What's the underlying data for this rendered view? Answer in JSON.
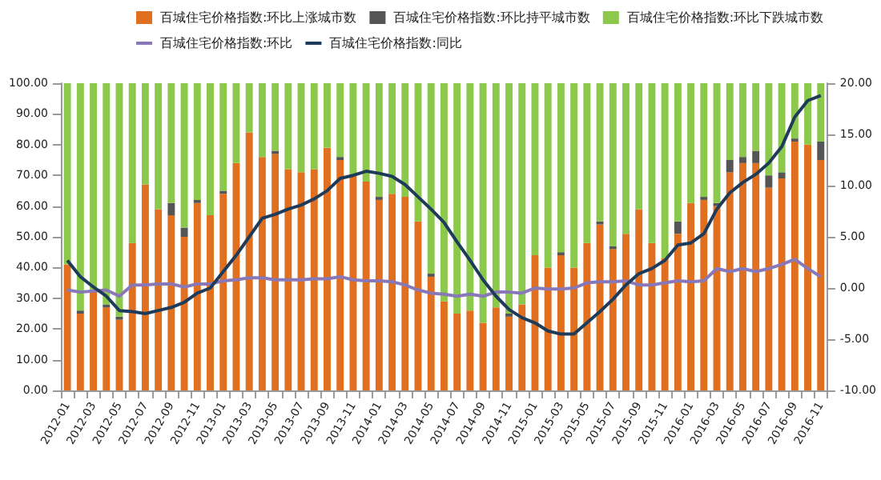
{
  "chart_data": {
    "type": "bar",
    "stacked": true,
    "legend": "top",
    "marker": "none",
    "categories": [
      "2012-01",
      null,
      "2012-03",
      null,
      "2012-05",
      null,
      "2012-07",
      null,
      "2012-09",
      null,
      "2012-11",
      null,
      "2013-01",
      null,
      "2013-03",
      null,
      "2013-05",
      null,
      "2013-07",
      null,
      "2013-09",
      null,
      "2013-11",
      null,
      "2014-01",
      null,
      "2014-03",
      null,
      "2014-05",
      null,
      "2014-07",
      null,
      "2014-09",
      null,
      "2014-11",
      null,
      "2015-01",
      null,
      "2015-03",
      null,
      "2015-05",
      null,
      "2015-07",
      null,
      "2015-09",
      null,
      "2015-11",
      null,
      "2016-01",
      null,
      "2016-03",
      null,
      "2016-05",
      null,
      "2016-07",
      null,
      "2016-09",
      null,
      "2016-11"
    ],
    "ylim": [
      0,
      100
    ],
    "yticks": [
      {
        "value": 0,
        "label": "0.00"
      },
      {
        "value": 10,
        "label": "10.00"
      },
      {
        "value": 20,
        "label": "20.00"
      },
      {
        "value": 30,
        "label": "30.00"
      },
      {
        "value": 40,
        "label": "40.00"
      },
      {
        "value": 50,
        "label": "50.00"
      },
      {
        "value": 60,
        "label": "60.00"
      },
      {
        "value": 70,
        "label": "70.00"
      },
      {
        "value": 80,
        "label": "80.00"
      },
      {
        "value": 90,
        "label": "90.00"
      },
      {
        "value": 100,
        "label": "100.00"
      }
    ],
    "y2lim": [
      -10,
      20
    ],
    "y2ticks": [
      {
        "value": -10,
        "label": "-10.00"
      },
      {
        "value": -5,
        "label": "-5.00"
      },
      {
        "value": 0,
        "label": "0.00"
      },
      {
        "value": 5,
        "label": "5.00"
      },
      {
        "value": 10,
        "label": "10.00"
      },
      {
        "value": 15,
        "label": "15.00"
      },
      {
        "value": 20,
        "label": "20.00"
      }
    ],
    "series": [
      {
        "name": "百城住宅价格指数:环比上涨城市数",
        "color": "#e07020",
        "values": [
          41,
          25,
          32,
          27,
          23,
          48,
          67,
          59,
          57,
          50,
          61,
          57,
          64,
          74,
          84,
          76,
          77,
          72,
          71,
          72,
          79,
          75,
          70,
          68,
          62,
          64,
          63,
          55,
          37,
          29,
          25,
          26,
          22,
          27,
          24,
          28,
          44,
          40,
          44,
          40,
          48,
          54,
          46,
          51,
          59,
          48,
          43,
          51,
          61,
          62,
          60,
          71,
          74,
          74,
          66,
          69,
          81,
          80,
          75
        ]
      },
      {
        "name": "百城住宅价格指数:环比持平城市数",
        "color": "#555555",
        "values": [
          0,
          1,
          0,
          1,
          1,
          0,
          0,
          0,
          4,
          3,
          1,
          0,
          1,
          0,
          0,
          0,
          1,
          0,
          0,
          0,
          0,
          1,
          0,
          0,
          1,
          0,
          0,
          0,
          1,
          0,
          0,
          0,
          0,
          0,
          1,
          0,
          0,
          0,
          1,
          0,
          0,
          1,
          1,
          0,
          0,
          0,
          0,
          4,
          0,
          1,
          1,
          4,
          2,
          4,
          4,
          2,
          1,
          0,
          6
        ]
      },
      {
        "name": "百城住宅价格指数:环比下跌城市数",
        "color": "#8cc84b",
        "values": [
          59,
          74,
          68,
          72,
          76,
          52,
          33,
          41,
          39,
          47,
          38,
          43,
          35,
          26,
          16,
          24,
          22,
          28,
          29,
          28,
          21,
          24,
          30,
          32,
          37,
          36,
          37,
          45,
          62,
          71,
          75,
          74,
          78,
          73,
          75,
          72,
          56,
          60,
          55,
          60,
          52,
          45,
          53,
          49,
          41,
          52,
          57,
          45,
          39,
          37,
          39,
          25,
          24,
          22,
          30,
          29,
          18,
          20,
          19
        ]
      },
      {
        "name": "百城住宅价格指数:环比",
        "type": "line",
        "axis": "y2",
        "color": "#8878b8",
        "values": [
          -0.2,
          -0.4,
          -0.3,
          -0.2,
          -0.8,
          0.3,
          0.3,
          0.4,
          0.4,
          0.1,
          0.4,
          0.4,
          0.7,
          0.8,
          1.0,
          1.0,
          0.8,
          0.8,
          0.8,
          0.9,
          0.9,
          1.1,
          0.8,
          0.7,
          0.7,
          0.6,
          0.3,
          -0.2,
          -0.5,
          -0.6,
          -0.8,
          -0.6,
          -0.8,
          -0.4,
          -0.4,
          -0.5,
          0.0,
          -0.1,
          -0.1,
          0.0,
          0.5,
          0.6,
          0.6,
          0.7,
          0.3,
          0.3,
          0.5,
          0.7,
          0.6,
          0.7,
          1.9,
          1.6,
          1.9,
          1.6,
          1.9,
          2.3,
          2.8,
          1.9,
          1.1
        ]
      },
      {
        "name": "百城住宅价格指数:同比",
        "type": "line",
        "axis": "y2",
        "color": "#1f3b5a",
        "values": [
          2.7,
          1.1,
          0.1,
          -0.8,
          -2.2,
          -2.3,
          -2.5,
          -2.2,
          -1.9,
          -1.4,
          -0.5,
          0.0,
          1.6,
          3.2,
          5.0,
          6.8,
          7.2,
          7.7,
          8.1,
          8.7,
          9.5,
          10.7,
          11.0,
          11.4,
          11.2,
          10.9,
          10.1,
          8.9,
          7.7,
          6.4,
          4.5,
          2.7,
          0.8,
          -0.8,
          -2.1,
          -2.9,
          -3.4,
          -4.2,
          -4.5,
          -4.5,
          -3.4,
          -2.3,
          -1.1,
          0.3,
          1.4,
          1.9,
          2.7,
          4.2,
          4.4,
          5.3,
          7.7,
          9.3,
          10.3,
          11.1,
          12.2,
          13.8,
          16.7,
          18.3,
          18.8
        ]
      }
    ]
  }
}
